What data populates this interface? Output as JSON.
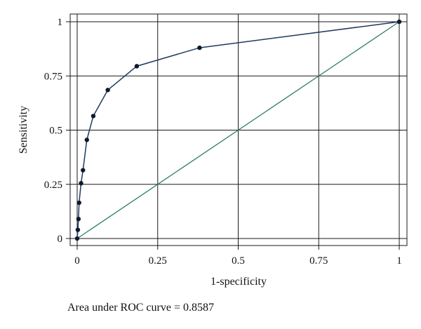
{
  "chart_data": {
    "type": "line",
    "xlabel": "1-specificity",
    "ylabel": "Sensitivity",
    "xlim": [
      0,
      1
    ],
    "ylim": [
      0,
      1
    ],
    "xticks": [
      "0",
      "0.25",
      "0.5",
      "0.75",
      "1"
    ],
    "yticks": [
      "0",
      "0.25",
      "0.5",
      "0.75",
      "1"
    ],
    "tick_values": [
      0,
      0.25,
      0.5,
      0.75,
      1
    ],
    "grid": true,
    "legend": "none",
    "series": [
      {
        "style": "line-with-markers",
        "color": "#1f3a5f",
        "x": [
          0.0,
          0.002,
          0.004,
          0.006,
          0.012,
          0.018,
          0.03,
          0.05,
          0.095,
          0.185,
          0.38,
          1.0
        ],
        "y": [
          0.0,
          0.04,
          0.09,
          0.165,
          0.255,
          0.315,
          0.455,
          0.565,
          0.685,
          0.795,
          0.88,
          1.0
        ]
      },
      {
        "style": "reference-line",
        "color": "#2e7d6b",
        "x": [
          0,
          1
        ],
        "y": [
          0,
          1
        ]
      }
    ],
    "annotation": "Area under ROC curve = 0.8587"
  }
}
